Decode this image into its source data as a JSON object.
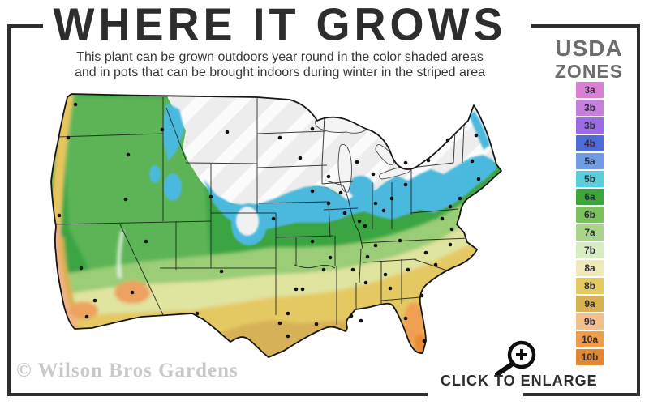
{
  "header": {
    "title": "WHERE IT GROWS",
    "subtitle_line1": "This plant can be grown outdoors year round in the color shaded areas",
    "subtitle_line2": "and in pots that can be brought indoors during winter in the striped area"
  },
  "legend": {
    "title_line1": "USDA",
    "title_line2": "ZONES",
    "zones": [
      {
        "label": "3a",
        "color": "#DB7FD2"
      },
      {
        "label": "3b",
        "color": "#C77EDC"
      },
      {
        "label": "3b",
        "color": "#9A6BE4"
      },
      {
        "label": "4b",
        "color": "#4C6BD6"
      },
      {
        "label": "5a",
        "color": "#6F9BE4"
      },
      {
        "label": "5b",
        "color": "#5BCEDE"
      },
      {
        "label": "6a",
        "color": "#3DA53C"
      },
      {
        "label": "6b",
        "color": "#7CC25C"
      },
      {
        "label": "7a",
        "color": "#A8D58A"
      },
      {
        "label": "7b",
        "color": "#D9EDC3"
      },
      {
        "label": "8a",
        "color": "#F0EABA"
      },
      {
        "label": "8b",
        "color": "#E5CA61"
      },
      {
        "label": "9a",
        "color": "#D8B156"
      },
      {
        "label": "9b",
        "color": "#F4BF8B"
      },
      {
        "label": "10a",
        "color": "#F09C49"
      },
      {
        "label": "10b",
        "color": "#E0872F"
      }
    ]
  },
  "map": {
    "area": "contiguous United States",
    "palette": {
      "base_green": "#3BA443",
      "intermountain_green": "#5CB457",
      "cold_cyan": "#4CB9DE",
      "zone7_green": "#9ACD76",
      "zone8_pale": "#DFE49F",
      "zone8b_gold": "#E4C963",
      "zone9_tan": "#D7B158",
      "zone10_orange": "#EF9F51",
      "striped_area_gray": "#EDEDED"
    }
  },
  "watermark": {
    "text": "© Wilson Bros Gardens"
  },
  "enlarge": {
    "label": "CLICK TO ENLARGE",
    "icon": "magnifier-plus-icon"
  },
  "colors": {
    "frame": "#2F2F2F",
    "title_text": "#2D2D2D",
    "legend_title_text": "#6C6C6C",
    "watermark_text": "#C9C9C9"
  }
}
